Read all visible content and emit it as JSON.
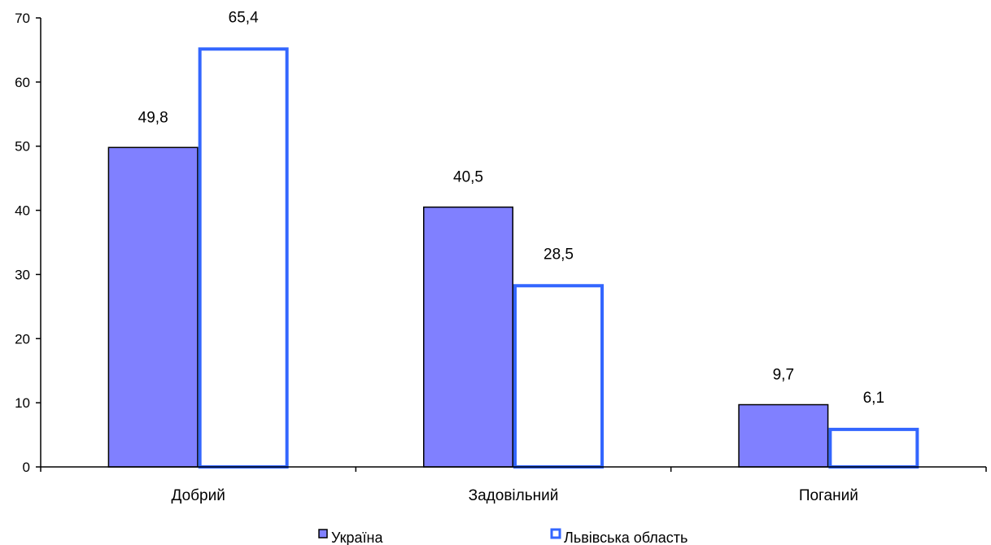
{
  "chart_data": {
    "type": "bar",
    "categories": [
      "Добрий",
      "Задовільний",
      "Поганий"
    ],
    "series": [
      {
        "name": "Україна",
        "values": [
          49.8,
          40.5,
          9.7
        ],
        "labels": [
          "49,8",
          "40,5",
          "9,7"
        ],
        "color": "#8080ff",
        "stroke": "#000000"
      },
      {
        "name": "Львівська область",
        "values": [
          65.4,
          28.5,
          6.1
        ],
        "labels": [
          "65,4",
          "28,5",
          "6,1"
        ],
        "color": "#ffffff",
        "stroke": "#3366ff"
      }
    ],
    "ylim": [
      0,
      70
    ],
    "yticks": [
      0,
      10,
      20,
      30,
      40,
      50,
      60,
      70
    ],
    "legend": "bottom",
    "grid": false
  }
}
